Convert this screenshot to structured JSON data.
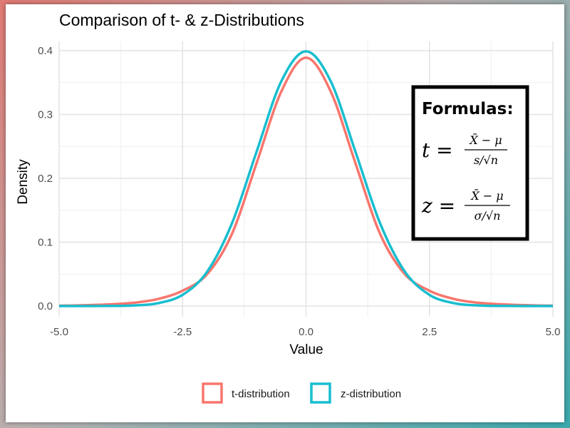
{
  "chart_data": {
    "type": "line",
    "title": "Comparison of t- & z-Distributions",
    "xlabel": "Value",
    "ylabel": "Density",
    "xlim": [
      -5,
      5
    ],
    "ylim": [
      0,
      0.4
    ],
    "x_ticks": [
      "-5.0",
      "-2.5",
      "0.0",
      "2.5",
      "5.0"
    ],
    "y_ticks": [
      "0.0",
      "0.1",
      "0.2",
      "0.3",
      "0.4"
    ],
    "grid": true,
    "legend": "bottom",
    "x": [
      -5,
      -4.5,
      -4,
      -3.5,
      -3,
      -2.5,
      -2,
      -1.5,
      -1,
      -0.5,
      0,
      0.5,
      1,
      1.5,
      2,
      2.5,
      3,
      3.5,
      4,
      4.5,
      5
    ],
    "series": [
      {
        "name": "t-distribution",
        "color": "#F8766D",
        "values": [
          0.0005,
          0.0012,
          0.0025,
          0.005,
          0.011,
          0.024,
          0.05,
          0.113,
          0.224,
          0.336,
          0.389,
          0.336,
          0.224,
          0.113,
          0.05,
          0.024,
          0.011,
          0.005,
          0.0025,
          0.0012,
          0.0005
        ]
      },
      {
        "name": "z-distribution",
        "color": "#17BECF",
        "values": [
          1.5e-06,
          1.6e-05,
          0.000134,
          0.000873,
          0.00443,
          0.0175,
          0.054,
          0.1295,
          0.242,
          0.3521,
          0.3989,
          0.3521,
          0.242,
          0.1295,
          0.054,
          0.0175,
          0.00443,
          0.000873,
          0.000134,
          1.6e-05,
          1.5e-06
        ]
      }
    ]
  },
  "formula_box": {
    "heading": "Formulas:",
    "t_lhs": "t =",
    "t_num": "X̄ − μ",
    "t_den": "s/√n",
    "z_lhs": "z =",
    "z_num": "X̄ − μ",
    "z_den": "σ/√n"
  }
}
